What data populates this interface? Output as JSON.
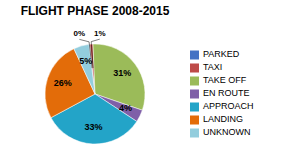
{
  "chart_data": {
    "type": "pie",
    "title": "FLIGHT PHASE 2008-2015",
    "categories": [
      "PARKED",
      "TAXI",
      "TAKE OFF",
      "EN ROUTE",
      "APPROACH",
      "LANDING",
      "UNKNOWN"
    ],
    "values": [
      0.3,
      1,
      31,
      4,
      33,
      26,
      5
    ],
    "value_labels": [
      "0%",
      "1%",
      "31%",
      "4%",
      "33%",
      "26%",
      "5%"
    ],
    "colors": [
      "#4472C4",
      "#BE4B48",
      "#9BBB59",
      "#7F5FA8",
      "#23A4C8",
      "#E36C09",
      "#93CDDD"
    ],
    "data_labels": true,
    "legend": "right"
  }
}
